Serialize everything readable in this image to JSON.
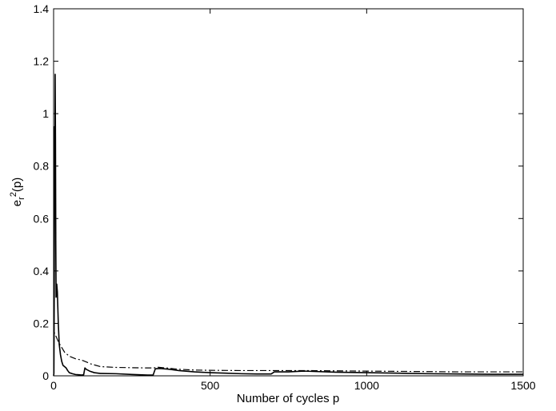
{
  "chart_data": {
    "type": "line",
    "title": "",
    "xlabel": "Number of cycles p",
    "ylabel": {
      "base": "e",
      "sub": "r",
      "sup": "2",
      "arg": "(p)"
    },
    "xlim": [
      0,
      1500
    ],
    "ylim": [
      0,
      1.4
    ],
    "xticks": [
      0,
      500,
      1000,
      1500
    ],
    "xtick_labels": [
      "0",
      "500",
      "1000",
      "1500"
    ],
    "yticks": [
      0,
      0.2,
      0.4,
      0.6,
      0.8,
      1.0,
      1.2,
      1.4
    ],
    "ytick_labels": [
      "0",
      "0.2",
      "0.4",
      "0.6",
      "0.8",
      "1",
      "1.2",
      "1.4"
    ],
    "grid": false,
    "legend": "none",
    "series": [
      {
        "style": "solid",
        "color": "#000000",
        "points": [
          [
            0,
            0.0
          ],
          [
            1,
            0.01
          ],
          [
            2,
            0.3
          ],
          [
            3,
            0.95
          ],
          [
            4,
            0.6
          ],
          [
            5,
            1.15
          ],
          [
            6,
            0.9
          ],
          [
            7,
            0.5
          ],
          [
            8,
            0.3
          ],
          [
            10,
            0.35
          ],
          [
            12,
            0.32
          ],
          [
            15,
            0.2
          ],
          [
            18,
            0.12
          ],
          [
            22,
            0.08
          ],
          [
            26,
            0.055
          ],
          [
            30,
            0.04
          ],
          [
            35,
            0.035
          ],
          [
            40,
            0.03
          ],
          [
            45,
            0.02
          ],
          [
            50,
            0.012
          ],
          [
            60,
            0.008
          ],
          [
            70,
            0.005
          ],
          [
            80,
            0.004
          ],
          [
            90,
            0.003
          ],
          [
            96,
            0.004
          ],
          [
            100,
            0.03
          ],
          [
            104,
            0.025
          ],
          [
            115,
            0.018
          ],
          [
            130,
            0.012
          ],
          [
            150,
            0.009
          ],
          [
            200,
            0.008
          ],
          [
            250,
            0.005
          ],
          [
            300,
            0.003
          ],
          [
            318,
            0.003
          ],
          [
            325,
            0.027
          ],
          [
            340,
            0.028
          ],
          [
            370,
            0.025
          ],
          [
            400,
            0.02
          ],
          [
            450,
            0.015
          ],
          [
            500,
            0.012
          ],
          [
            550,
            0.01
          ],
          [
            600,
            0.008
          ],
          [
            650,
            0.007
          ],
          [
            695,
            0.007
          ],
          [
            705,
            0.015
          ],
          [
            750,
            0.015
          ],
          [
            780,
            0.017
          ],
          [
            800,
            0.018
          ],
          [
            900,
            0.014
          ],
          [
            1000,
            0.012
          ],
          [
            1100,
            0.01
          ],
          [
            1200,
            0.008
          ],
          [
            1300,
            0.007
          ],
          [
            1400,
            0.006
          ],
          [
            1500,
            0.006
          ]
        ]
      },
      {
        "style": "dash-dot",
        "color": "#000000",
        "points": [
          [
            0,
            0.2
          ],
          [
            3,
            0.16
          ],
          [
            8,
            0.15
          ],
          [
            15,
            0.13
          ],
          [
            25,
            0.11
          ],
          [
            35,
            0.09
          ],
          [
            50,
            0.075
          ],
          [
            70,
            0.065
          ],
          [
            90,
            0.06
          ],
          [
            100,
            0.055
          ],
          [
            120,
            0.045
          ],
          [
            150,
            0.035
          ],
          [
            200,
            0.032
          ],
          [
            250,
            0.031
          ],
          [
            300,
            0.03
          ],
          [
            320,
            0.03
          ],
          [
            330,
            0.033
          ],
          [
            360,
            0.03
          ],
          [
            400,
            0.025
          ],
          [
            450,
            0.022
          ],
          [
            500,
            0.021
          ],
          [
            600,
            0.02
          ],
          [
            700,
            0.02
          ],
          [
            800,
            0.02
          ],
          [
            900,
            0.019
          ],
          [
            1000,
            0.018
          ],
          [
            1100,
            0.017
          ],
          [
            1200,
            0.016
          ],
          [
            1300,
            0.015
          ],
          [
            1400,
            0.015
          ],
          [
            1500,
            0.015
          ]
        ]
      }
    ]
  }
}
